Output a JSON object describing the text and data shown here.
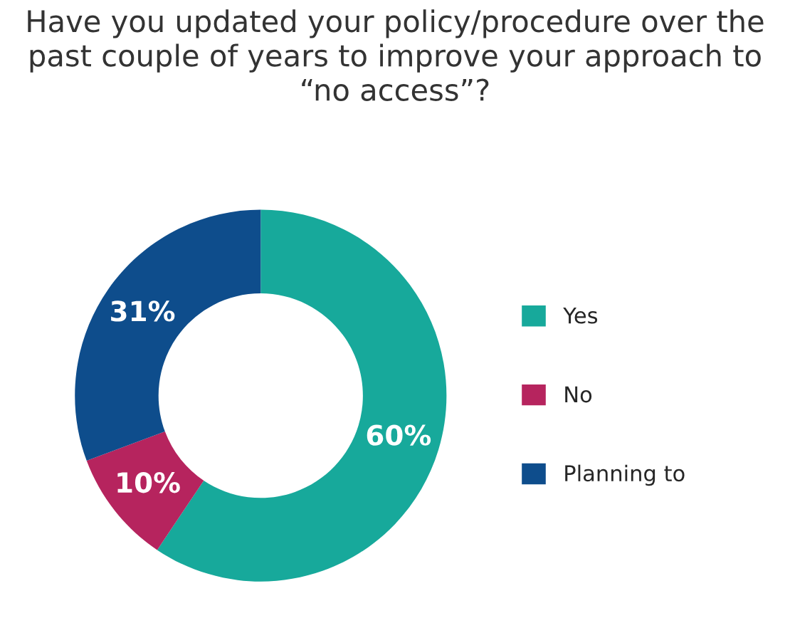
{
  "chart_data": {
    "type": "donut",
    "title": "Have you updated your policy/procedure over the past couple of years to improve your approach to “no access”?",
    "categories": [
      "Yes",
      "No",
      "Planning to"
    ],
    "values": [
      60,
      10,
      31
    ],
    "value_labels": [
      "60%",
      "10%",
      "31%"
    ],
    "colors": [
      "#17a99b",
      "#b6245e",
      "#0e4d8c"
    ],
    "legend": "right"
  }
}
